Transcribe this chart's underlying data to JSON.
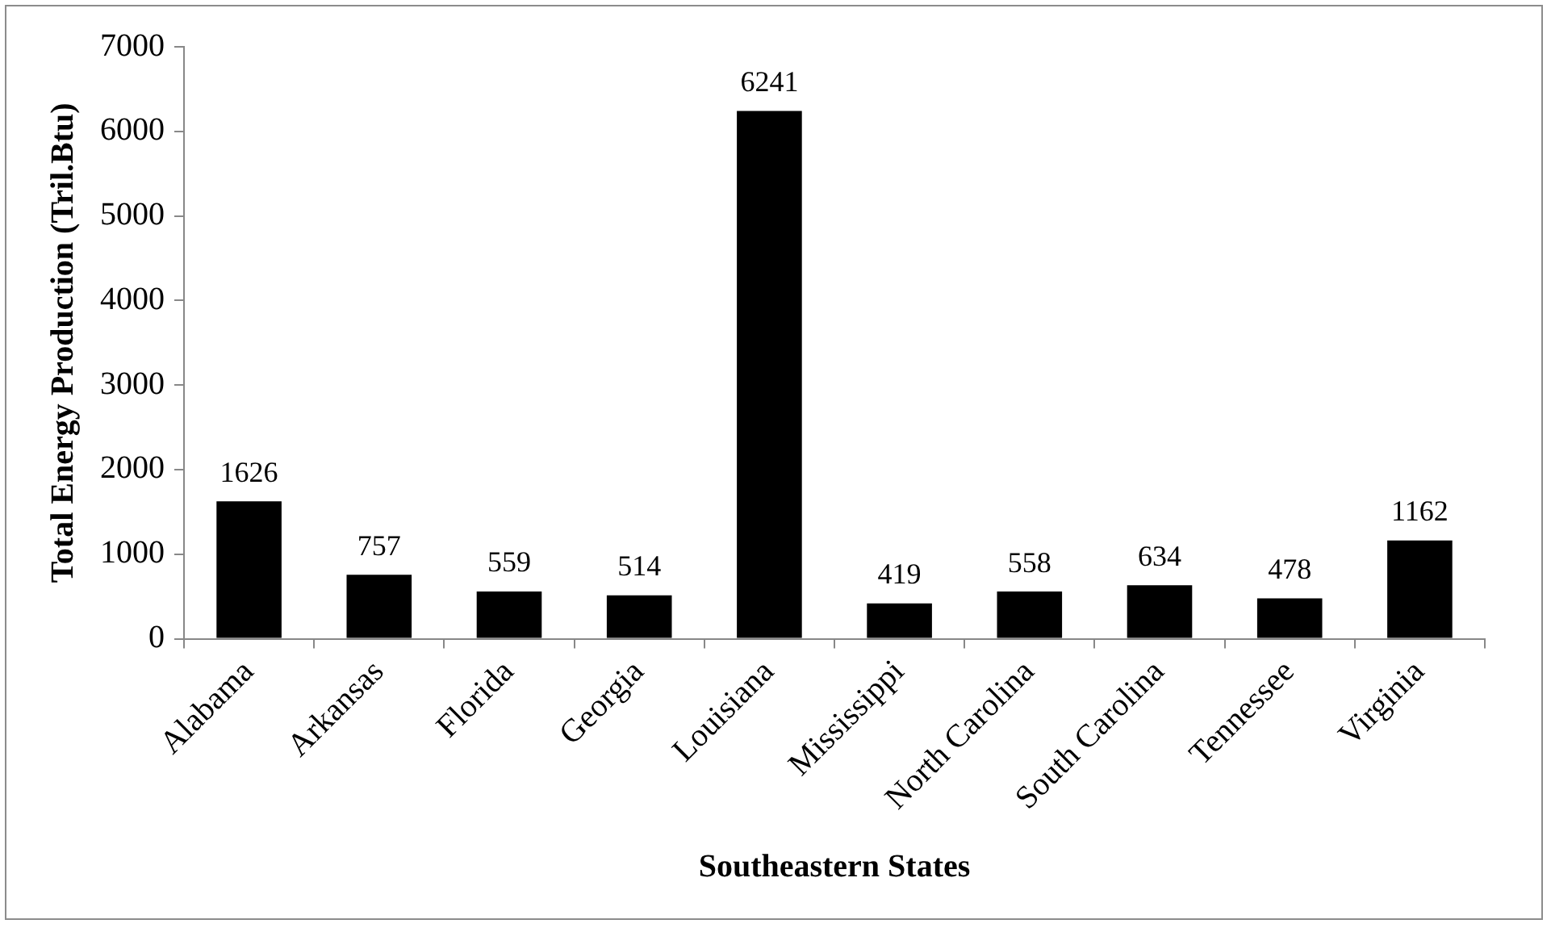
{
  "chart_data": {
    "type": "bar",
    "xlabel": "Southeastern States",
    "ylabel": "Total Energy Production (Tril.Btu)",
    "categories": [
      "Alabama",
      "Arkansas",
      "Florida",
      "Georgia",
      "Louisiana",
      "Mississippi",
      "North Carolina",
      "South Carolina",
      "Tennessee",
      "Virginia"
    ],
    "values": [
      1626,
      757,
      559,
      514,
      6241,
      419,
      558,
      634,
      478,
      1162
    ],
    "color": "#000000",
    "ylim": [
      0,
      7000
    ],
    "yticks": [
      0,
      1000,
      2000,
      3000,
      4000,
      5000,
      6000,
      7000
    ],
    "grid": false,
    "legend": false,
    "data_labels": true
  }
}
